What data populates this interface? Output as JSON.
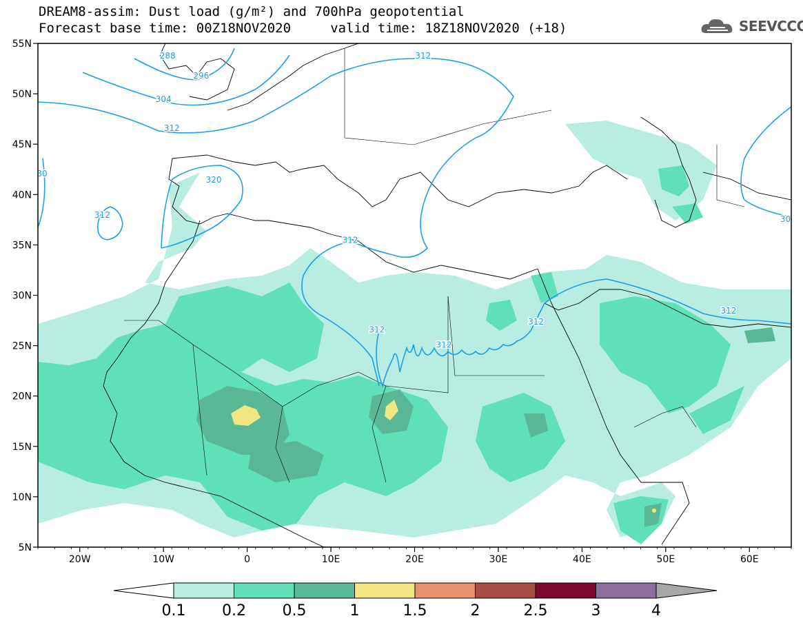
{
  "title": {
    "line1": "DREAM8-assim: Dust load (g/m²) and 700hPa geopotential",
    "line2": "Forecast base time: 00Z18NOV2020     valid time: 18Z18NOV2020 (+18)"
  },
  "logo": {
    "text": "SEEVCCC",
    "icon": "cloud-logo-icon"
  },
  "map": {
    "lon_range": [
      -25,
      65
    ],
    "lat_range": [
      5,
      55
    ],
    "lon_ticks": [
      {
        "value": -20,
        "label": "20W"
      },
      {
        "value": -10,
        "label": "10W"
      },
      {
        "value": 0,
        "label": "0"
      },
      {
        "value": 10,
        "label": "10E"
      },
      {
        "value": 20,
        "label": "20E"
      },
      {
        "value": 30,
        "label": "30E"
      },
      {
        "value": 40,
        "label": "40E"
      },
      {
        "value": 50,
        "label": "50E"
      },
      {
        "value": 60,
        "label": "60E"
      }
    ],
    "lat_ticks": [
      {
        "value": 55,
        "label": "55N"
      },
      {
        "value": 50,
        "label": "50N"
      },
      {
        "value": 45,
        "label": "45N"
      },
      {
        "value": 40,
        "label": "40N"
      },
      {
        "value": 35,
        "label": "35N"
      },
      {
        "value": 30,
        "label": "30N"
      },
      {
        "value": 25,
        "label": "25N"
      },
      {
        "value": 20,
        "label": "20N"
      },
      {
        "value": 15,
        "label": "15N"
      },
      {
        "value": 10,
        "label": "10N"
      },
      {
        "value": 5,
        "label": "5N"
      }
    ],
    "contour_labels": [
      {
        "text": "288",
        "lon": -9.5,
        "lat": 53.5
      },
      {
        "text": "296",
        "lon": -5.5,
        "lat": 51.5
      },
      {
        "text": "304",
        "lon": -10,
        "lat": 49.2
      },
      {
        "text": "312",
        "lon": -9,
        "lat": 46.3
      },
      {
        "text": "312",
        "lon": 21,
        "lat": 53.5
      },
      {
        "text": "320",
        "lon": -4,
        "lat": 41.2
      },
      {
        "text": "312",
        "lon": -17.3,
        "lat": 37.7
      },
      {
        "text": "312",
        "lon": 12.3,
        "lat": 35.2
      },
      {
        "text": "312",
        "lon": 15.5,
        "lat": 26.3
      },
      {
        "text": "312",
        "lon": 23.5,
        "lat": 24.8
      },
      {
        "text": "312",
        "lon": 34.5,
        "lat": 27.1
      },
      {
        "text": "312",
        "lon": 57.5,
        "lat": 28.2
      },
      {
        "text": "30",
        "lon": 64.3,
        "lat": 37.3
      },
      {
        "text": "30",
        "lon": -24.5,
        "lat": 41.8
      }
    ],
    "colors": {
      "contour": "#1aa0e8",
      "border": "#000000"
    }
  },
  "colorbar": {
    "labels": [
      "0.1",
      "0.2",
      "0.5",
      "1",
      "1.5",
      "2",
      "2.5",
      "3",
      "4"
    ],
    "colors": [
      "#b8ede1",
      "#5fe0b8",
      "#5ab896",
      "#f2e680",
      "#e99270",
      "#a94e44",
      "#7c0a30",
      "#8e6ea0",
      "#a8a8a8"
    ],
    "under_color": "#ffffff"
  }
}
